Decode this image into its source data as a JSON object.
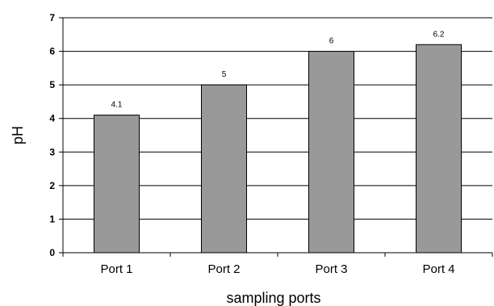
{
  "chart_data": {
    "type": "bar",
    "categories": [
      "Port 1",
      "Port 2",
      "Port 3",
      "Port 4"
    ],
    "values": [
      4.1,
      5,
      6,
      6.2
    ],
    "data_labels": [
      "4.1",
      "5",
      "6",
      "6.2"
    ],
    "xlabel": "sampling ports",
    "ylabel": "pH",
    "ylim": [
      0,
      7
    ],
    "yticks": [
      "0",
      "1",
      "2",
      "3",
      "4",
      "5",
      "6",
      "7"
    ],
    "grid": "horizontal",
    "legend": "none",
    "bar_color": "#999999",
    "bar_edge_color": "#000000"
  }
}
